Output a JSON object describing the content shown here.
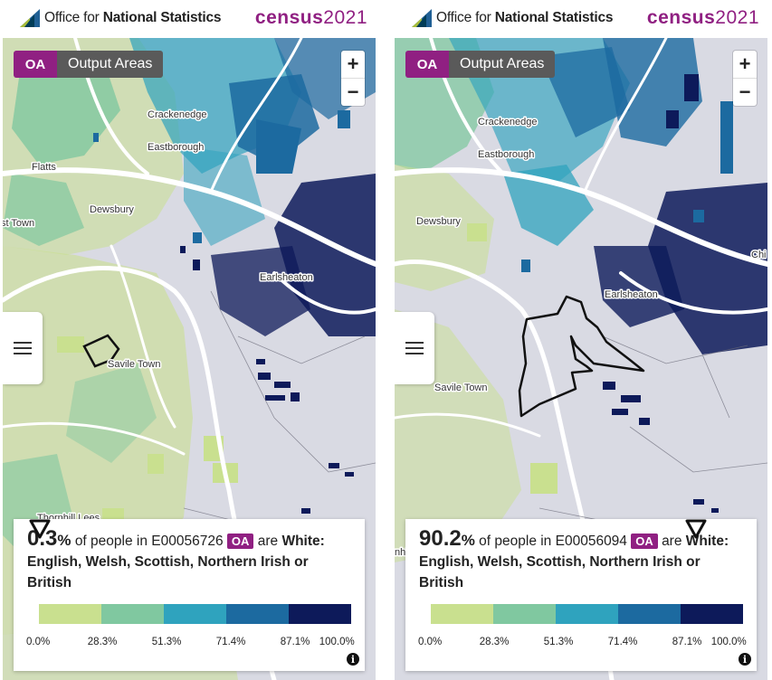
{
  "header": {
    "ons_prefix": "Office for ",
    "ons_bold": "National Statistics",
    "census_word": "census",
    "census_year": "2021"
  },
  "left": {
    "geo_code": "OA",
    "geo_name": "Output Areas",
    "zoom_in": "+",
    "zoom_out": "−",
    "place_labels": [
      "Crackenedge",
      "Eastborough",
      "Flatts",
      "Dewsbury",
      "st Town",
      "Earlsheaton",
      "Savile Town",
      "Thornhill Lees"
    ],
    "value": "0.3",
    "pct_symbol": "%",
    "text_pre": "of people in",
    "area_code": "E00056726",
    "area_badge": "OA",
    "text_mid": "are",
    "category": "White: English, Welsh, Scottish, Northern Irish or British",
    "marker_value": 0.3,
    "info": "i"
  },
  "right": {
    "geo_code": "OA",
    "geo_name": "Output Areas",
    "zoom_in": "+",
    "zoom_out": "−",
    "place_labels": [
      "Crackenedge",
      "Eastborough",
      "Dewsbury",
      "Earlsheaton",
      "Savile Town",
      "Chi",
      "nhill L"
    ],
    "value": "90.2",
    "pct_symbol": "%",
    "text_pre": "of people in",
    "area_code": "E00056094",
    "area_badge": "OA",
    "text_mid": "are",
    "category": "White: English, Welsh, Scottish, Northern Irish or British",
    "marker_value": 90.2,
    "info": "i"
  },
  "legend": {
    "breaks": [
      "0.0%",
      "28.3%",
      "51.3%",
      "71.4%",
      "87.1%",
      "100.0%"
    ],
    "colors": [
      "#c9e08f",
      "#80c8a0",
      "#2fa3be",
      "#1c6aa0",
      "#0d1a5a"
    ]
  },
  "map_colors": {
    "background": "#d9dae3",
    "low": "#c9e08f",
    "mid_low": "#80c8a0",
    "mid": "#2fa3be",
    "mid_high": "#1c6aa0",
    "high": "#0d1a5a",
    "road": "#ffffff",
    "brand": "#902082"
  }
}
